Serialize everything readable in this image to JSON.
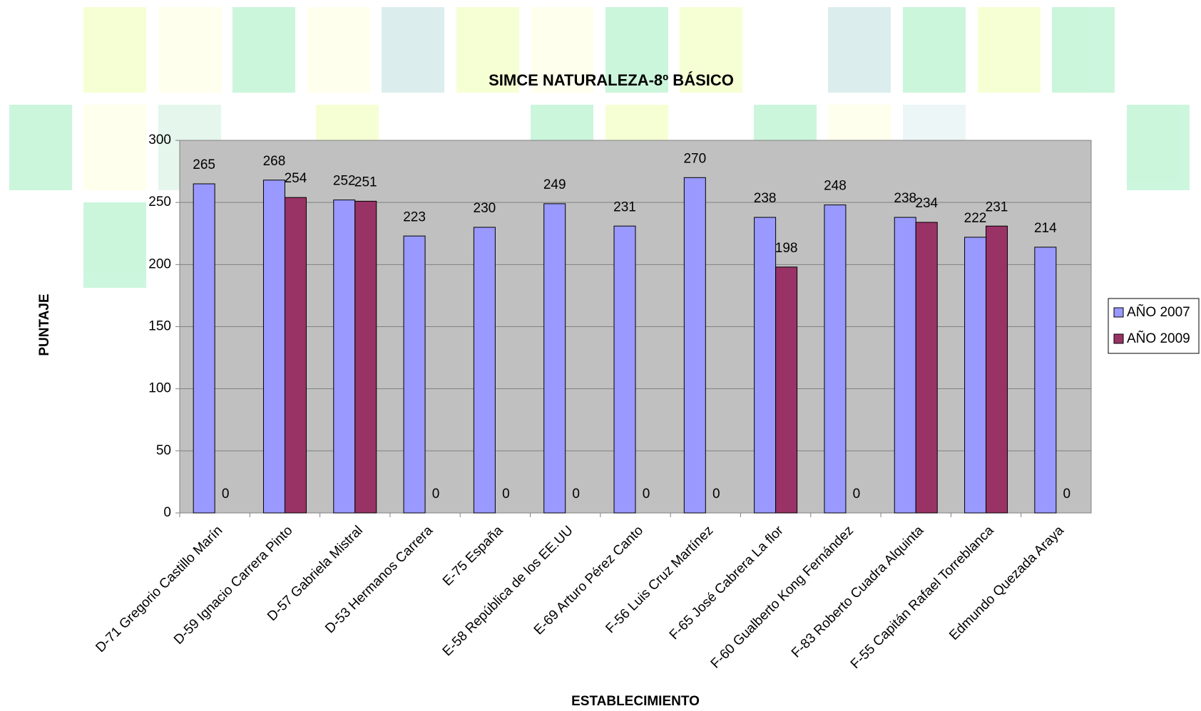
{
  "chart_data": {
    "type": "bar",
    "title": "SIMCE NATURALEZA-8º BÁSICO",
    "x_label": "ESTABLECIMIENTO",
    "y_label": "PUNTAJE",
    "categories": [
      "D-71 Gregorio Castillo Marín",
      "D-59 Ignacio Carrera Pinto",
      "D-57 Gabriela Mistral",
      "D-53 Hermanos Carrera",
      "E-75 España",
      "E-58 República de los EE.UU",
      "E-69 Arturo Pérez Canto",
      "F-56 Luis Cruz Martínez",
      "F-65 José Cabrera La flor",
      "F-60 Gualberto Kong Fernández",
      "F-83 Roberto Cuadra Alquinta",
      "F-55 Capitán Rafael Torreblanca",
      "Edmundo Quezada Araya"
    ],
    "series": [
      {
        "name": "AÑO 2007",
        "color": "#9999ff",
        "values": [
          265,
          268,
          252,
          223,
          230,
          249,
          231,
          270,
          238,
          248,
          238,
          222,
          214
        ]
      },
      {
        "name": "AÑO 2009",
        "color": "#993366",
        "values": [
          0,
          254,
          251,
          0,
          0,
          0,
          0,
          0,
          198,
          0,
          234,
          231,
          0
        ]
      }
    ],
    "ylim": [
      0,
      300
    ],
    "yticks": [
      0,
      50,
      100,
      150,
      200,
      250,
      300
    ],
    "grid": true,
    "legend": "right",
    "plot_background": "#c0c0c0"
  }
}
